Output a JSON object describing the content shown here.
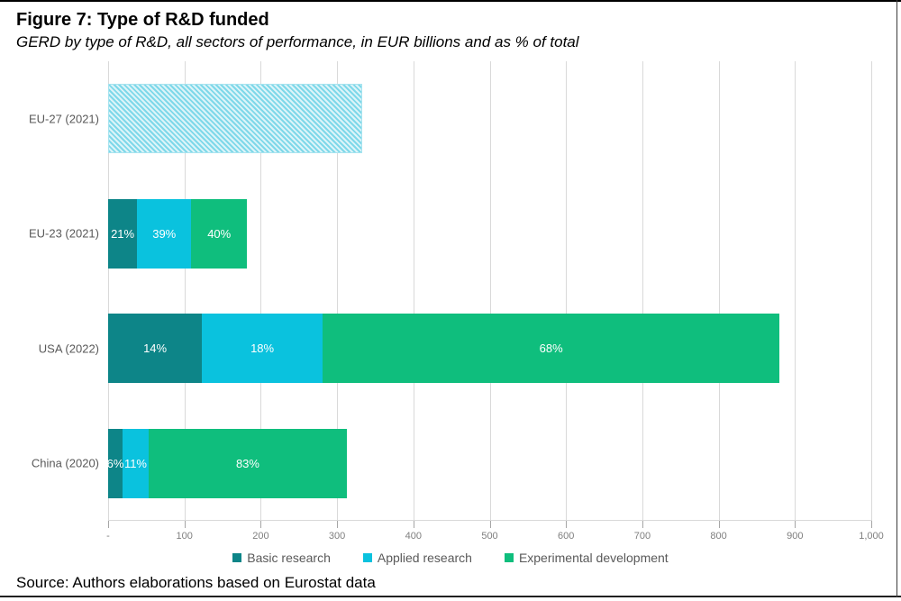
{
  "header": {
    "title": "Figure 7: Type of R&D funded",
    "subtitle": "GERD by type of R&D, all sectors of performance, in EUR billions and as % of total"
  },
  "chart_data": {
    "type": "bar",
    "orientation": "horizontal",
    "stacked": true,
    "unit": "EUR billions",
    "grid": true,
    "x_axis": {
      "min": 0,
      "max": 1000,
      "tick_step": 100,
      "tick_labels": [
        "-",
        "100",
        "200",
        "300",
        "400",
        "500",
        "600",
        "700",
        "800",
        "900",
        "1,000"
      ]
    },
    "legend": [
      {
        "label": "Basic research",
        "color": "#0d8588"
      },
      {
        "label": "Applied research",
        "color": "#0ac2de"
      },
      {
        "label": "Experimental development",
        "color": "#0fbe7d"
      }
    ],
    "legend_position": "bottom",
    "rows": [
      {
        "category": "EU-27 (2021)",
        "total": 333,
        "hatched": true,
        "hatch_color": "#7ed8e9",
        "segments": []
      },
      {
        "category": "EU-23 (2021)",
        "total": 182,
        "hatched": false,
        "segments": [
          {
            "series": "Basic research",
            "value": 38,
            "label": "21%"
          },
          {
            "series": "Applied research",
            "value": 71,
            "label": "39%"
          },
          {
            "series": "Experimental development",
            "value": 73,
            "label": "40%"
          }
        ]
      },
      {
        "category": "USA (2022)",
        "total": 880,
        "hatched": false,
        "segments": [
          {
            "series": "Basic research",
            "value": 123,
            "label": "14%"
          },
          {
            "series": "Applied research",
            "value": 158,
            "label": "18%"
          },
          {
            "series": "Experimental development",
            "value": 599,
            "label": "68%"
          }
        ]
      },
      {
        "category": "China (2020)",
        "total": 313,
        "hatched": false,
        "segments": [
          {
            "series": "Basic research",
            "value": 19,
            "label": "6%"
          },
          {
            "series": "Applied research",
            "value": 34,
            "label": "11%"
          },
          {
            "series": "Experimental development",
            "value": 260,
            "label": "83%"
          }
        ]
      }
    ]
  },
  "footer": {
    "source": "Source: Authors elaborations based on Eurostat data"
  }
}
